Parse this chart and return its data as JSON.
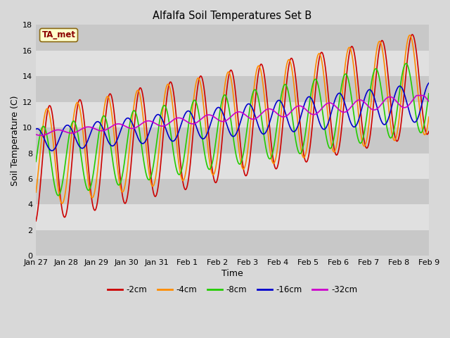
{
  "title": "Alfalfa Soil Temperatures Set B",
  "xlabel": "Time",
  "ylabel": "Soil Temperature (C)",
  "ylim": [
    0,
    18
  ],
  "xlim": [
    0,
    312
  ],
  "annotation": "TA_met",
  "annotation_color": "#8B0000",
  "annotation_bg": "#FFFFCC",
  "background_color": "#D8D8D8",
  "plot_bg": "#D8D8D8",
  "grid_color": "#FFFFFF",
  "series": {
    "-2cm": {
      "color": "#CC0000",
      "lw": 1.2
    },
    "-4cm": {
      "color": "#FF8C00",
      "lw": 1.2
    },
    "-8cm": {
      "color": "#22CC00",
      "lw": 1.2
    },
    "-16cm": {
      "color": "#0000CC",
      "lw": 1.2
    },
    "-32cm": {
      "color": "#CC00CC",
      "lw": 1.2
    }
  },
  "xticks": [
    0,
    24,
    48,
    72,
    96,
    120,
    144,
    168,
    192,
    216,
    240,
    264,
    288,
    312
  ],
  "xticklabels": [
    "Jan 27",
    "Jan 28",
    "Jan 29",
    "Jan 30",
    "Jan 31",
    "Feb 1",
    "Feb 2",
    "Feb 3",
    "Feb 4",
    "Feb 5",
    "Feb 6",
    "Feb 7",
    "Feb 8",
    "Feb 9"
  ],
  "band_colors": [
    "#C8C8C8",
    "#E0E0E0"
  ],
  "ytick_vals": [
    0,
    2,
    4,
    6,
    8,
    10,
    12,
    14,
    16,
    18
  ]
}
